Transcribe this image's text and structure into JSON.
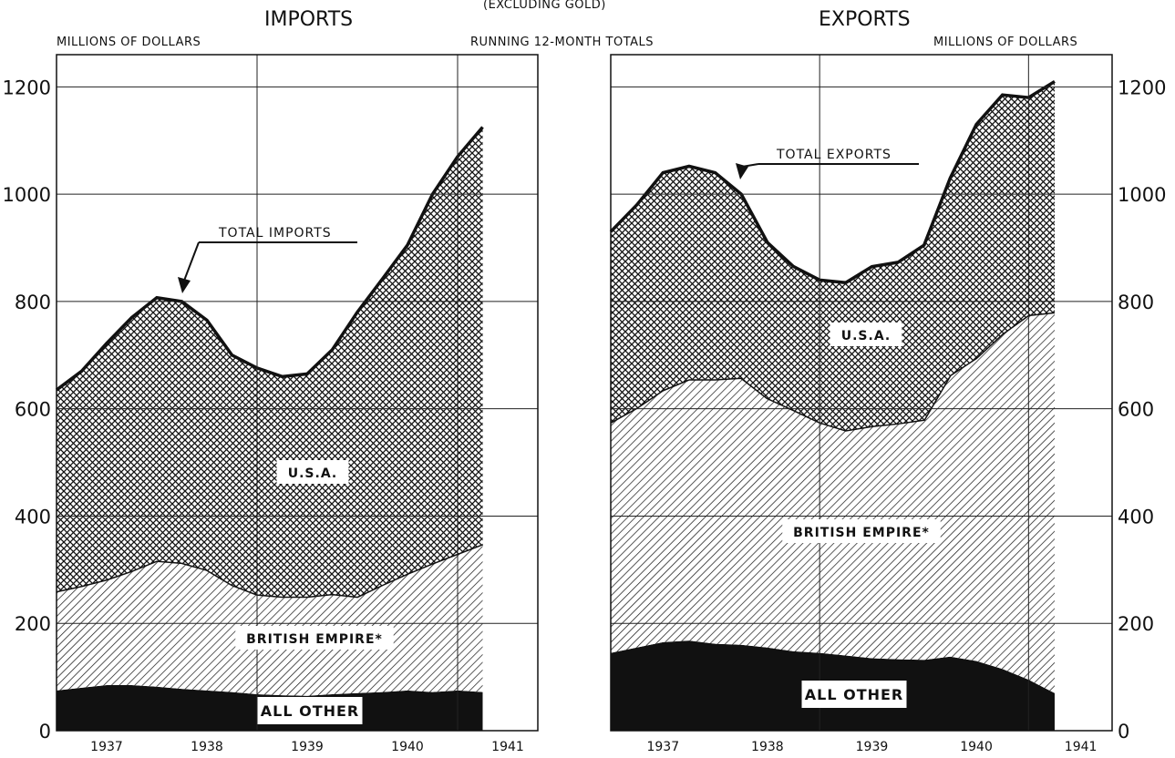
{
  "header": {
    "subtitle": "(EXCLUDING GOLD)",
    "running_totals": "RUNNING 12-MONTH TOTALS"
  },
  "colors": {
    "ink": "#111111",
    "background": "#ffffff"
  },
  "chart_data": [
    {
      "type": "area",
      "title": "IMPORTS",
      "ylabel": "MILLIONS OF DOLLARS",
      "ylim": [
        0,
        1260
      ],
      "yticks": [
        0,
        200,
        400,
        600,
        800,
        1000,
        1200
      ],
      "xticks": [
        "1937",
        "1938",
        "1939",
        "1940",
        "1941"
      ],
      "xlim": [
        1936.5,
        1941.3
      ],
      "grid": true,
      "stacked": true,
      "annotations": [
        {
          "text": "TOTAL IMPORTS",
          "x": 1937.65,
          "y": 810
        }
      ],
      "series": [
        {
          "name": "ALL OTHER",
          "pattern": "solid",
          "x": [
            1936.5,
            1936.75,
            1937,
            1937.25,
            1937.5,
            1937.75,
            1938,
            1938.25,
            1938.5,
            1938.75,
            1939,
            1939.25,
            1939.5,
            1939.75,
            1940,
            1940.25,
            1940.5,
            1940.75
          ],
          "values": [
            75,
            80,
            85,
            85,
            82,
            78,
            75,
            72,
            68,
            66,
            65,
            68,
            70,
            72,
            75,
            72,
            75,
            72
          ]
        },
        {
          "name": "BRITISH EMPIRE*",
          "pattern": "diagonal",
          "x": [
            1936.5,
            1936.75,
            1937,
            1937.25,
            1937.5,
            1937.75,
            1938,
            1938.25,
            1938.5,
            1938.75,
            1939,
            1939.25,
            1939.5,
            1939.75,
            1940,
            1940.25,
            1940.5,
            1940.75
          ],
          "values": [
            185,
            190,
            197,
            213,
            235,
            235,
            225,
            200,
            186,
            184,
            185,
            187,
            180,
            200,
            218,
            240,
            255,
            276
          ]
        },
        {
          "name": "U.S.A.",
          "pattern": "crosshatch",
          "x": [
            1936.5,
            1936.75,
            1937,
            1937.25,
            1937.5,
            1937.75,
            1938,
            1938.25,
            1938.5,
            1938.75,
            1939,
            1939.25,
            1939.5,
            1939.75,
            1940,
            1940.25,
            1940.5,
            1940.75
          ],
          "values": [
            375,
            400,
            440,
            472,
            490,
            487,
            465,
            428,
            422,
            410,
            415,
            455,
            530,
            570,
            612,
            688,
            740,
            777
          ]
        }
      ],
      "total": {
        "name": "TOTAL IMPORTS",
        "x": [
          1936.5,
          1936.75,
          1937,
          1937.25,
          1937.5,
          1937.75,
          1938,
          1938.25,
          1938.5,
          1938.75,
          1939,
          1939.25,
          1939.5,
          1939.75,
          1940,
          1940.25,
          1940.5,
          1940.75
        ],
        "values": [
          635,
          670,
          722,
          770,
          807,
          800,
          765,
          700,
          676,
          660,
          665,
          710,
          780,
          842,
          905,
          1000,
          1070,
          1125
        ]
      }
    },
    {
      "type": "area",
      "title": "EXPORTS",
      "ylabel": "MILLIONS OF DOLLARS",
      "ylim": [
        0,
        1260
      ],
      "yticks": [
        0,
        200,
        400,
        600,
        800,
        1000,
        1200
      ],
      "xticks": [
        "1937",
        "1938",
        "1939",
        "1940",
        "1941"
      ],
      "xlim": [
        1936.5,
        1941.3
      ],
      "grid": true,
      "stacked": true,
      "annotations": [
        {
          "text": "TOTAL EXPORTS",
          "x": 1937.9,
          "y": 1010
        }
      ],
      "series": [
        {
          "name": "ALL OTHER",
          "pattern": "solid",
          "x": [
            1936.5,
            1936.75,
            1937,
            1937.25,
            1937.5,
            1937.75,
            1938,
            1938.25,
            1938.5,
            1938.75,
            1939,
            1939.25,
            1939.5,
            1939.75,
            1940,
            1940.25,
            1940.5,
            1940.75
          ],
          "values": [
            145,
            155,
            165,
            168,
            162,
            160,
            155,
            148,
            145,
            140,
            135,
            133,
            132,
            138,
            130,
            115,
            95,
            70
          ]
        },
        {
          "name": "BRITISH EMPIRE*",
          "pattern": "diagonal",
          "x": [
            1936.5,
            1936.75,
            1937,
            1937.25,
            1937.5,
            1937.75,
            1938,
            1938.25,
            1938.5,
            1938.75,
            1939,
            1939.25,
            1939.5,
            1939.75,
            1940,
            1940.25,
            1940.5,
            1940.75
          ],
          "values": [
            430,
            447,
            470,
            487,
            493,
            498,
            465,
            450,
            430,
            420,
            433,
            440,
            448,
            525,
            565,
            625,
            680,
            710
          ]
        },
        {
          "name": "U.S.A.",
          "pattern": "crosshatch",
          "x": [
            1936.5,
            1936.75,
            1937,
            1937.25,
            1937.5,
            1937.75,
            1938,
            1938.25,
            1938.5,
            1938.75,
            1939,
            1939.25,
            1939.5,
            1939.75,
            1940,
            1940.25,
            1940.5,
            1940.75
          ],
          "values": [
            355,
            378,
            405,
            397,
            385,
            342,
            290,
            267,
            265,
            275,
            297,
            300,
            325,
            367,
            435,
            445,
            405,
            430
          ]
        }
      ],
      "total": {
        "name": "TOTAL EXPORTS",
        "x": [
          1936.5,
          1936.75,
          1937,
          1937.25,
          1937.5,
          1937.75,
          1938,
          1938.25,
          1938.5,
          1938.75,
          1939,
          1939.25,
          1939.5,
          1939.75,
          1940,
          1940.25,
          1940.5,
          1940.75
        ],
        "values": [
          930,
          980,
          1040,
          1052,
          1040,
          1000,
          910,
          865,
          840,
          835,
          865,
          873,
          905,
          1030,
          1130,
          1185,
          1180,
          1210
        ]
      }
    }
  ]
}
